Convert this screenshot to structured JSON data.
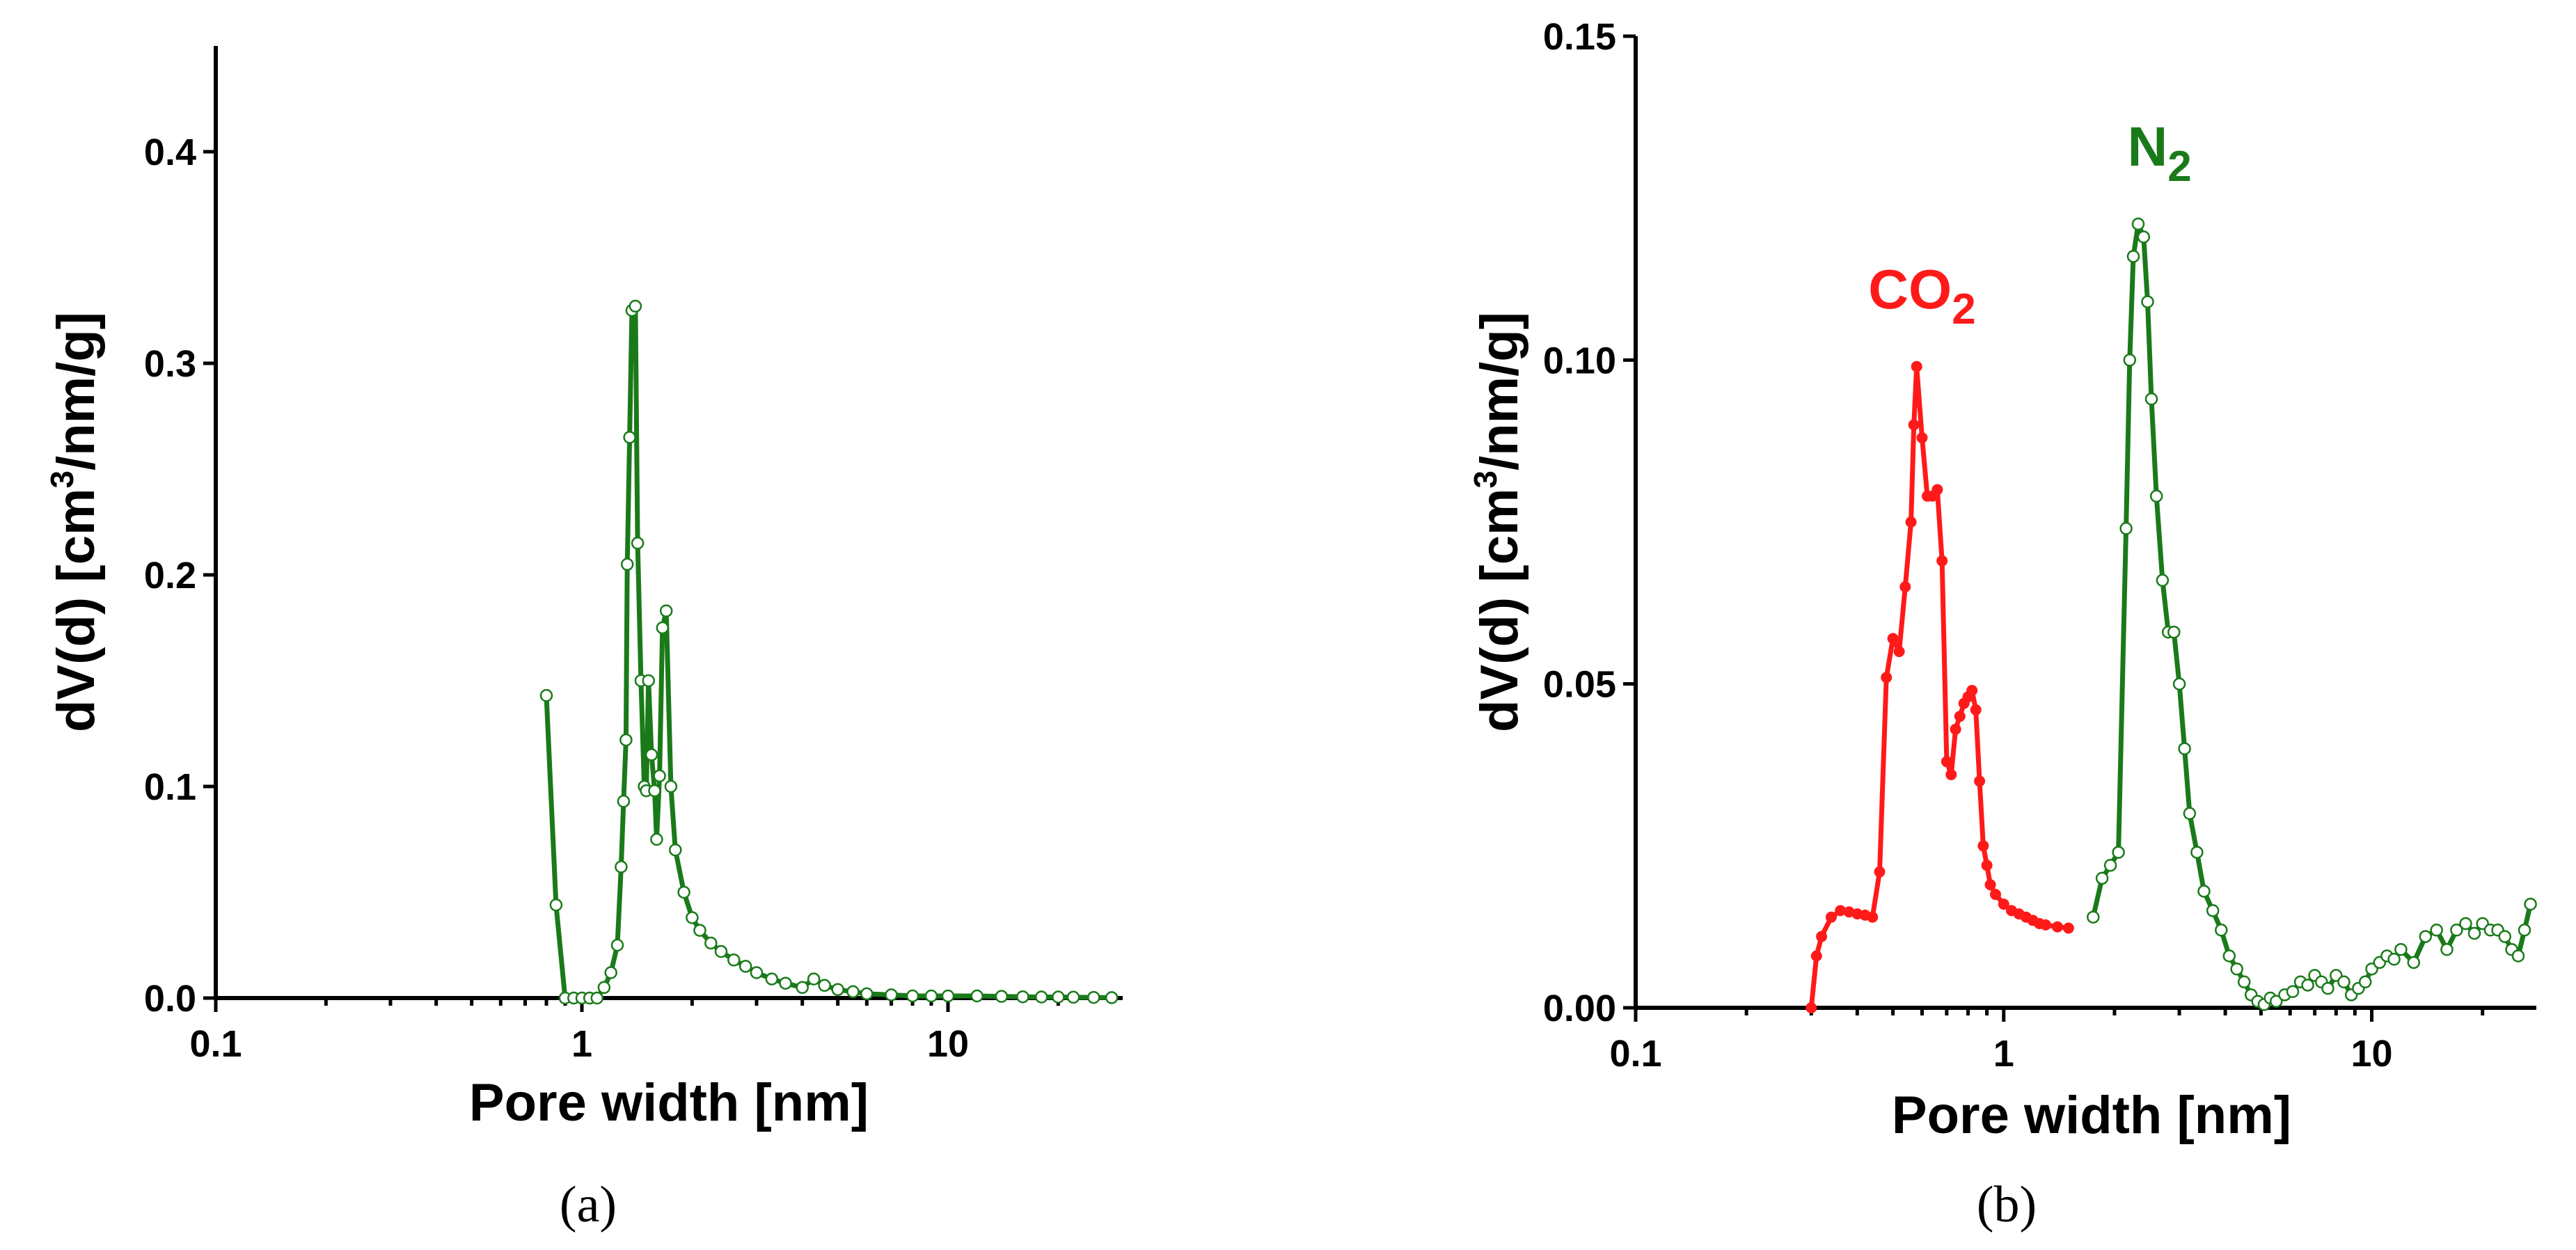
{
  "colors": {
    "nitrogen": "#1a7a1a",
    "co2": "#ff1a1a",
    "axis": "#000000"
  },
  "chart_data": [
    {
      "id": "a",
      "type": "line",
      "caption": "(a)",
      "xlabel": "Pore width [nm]",
      "ylabel_parts": [
        "dV(d) [cm",
        "3",
        "/nm/g]"
      ],
      "xscale": "log",
      "xlim": [
        0.1,
        30
      ],
      "ylim": [
        0,
        0.45
      ],
      "xticks": [
        {
          "v": 0.1,
          "label": "0.1"
        },
        {
          "v": 1,
          "label": "1"
        },
        {
          "v": 10,
          "label": "10"
        }
      ],
      "yticks": [
        {
          "v": 0,
          "label": "0.0"
        },
        {
          "v": 0.1,
          "label": "0.1"
        },
        {
          "v": 0.2,
          "label": "0.2"
        },
        {
          "v": 0.3,
          "label": "0.3"
        },
        {
          "v": 0.4,
          "label": "0.4"
        }
      ],
      "series": [
        {
          "name": "N2",
          "color": "#1a7a1a",
          "marker": "open-circle",
          "x": [
            0.8,
            0.85,
            0.9,
            0.95,
            1.0,
            1.05,
            1.1,
            1.15,
            1.2,
            1.25,
            1.28,
            1.3,
            1.32,
            1.33,
            1.35,
            1.37,
            1.4,
            1.42,
            1.45,
            1.48,
            1.5,
            1.52,
            1.55,
            1.58,
            1.6,
            1.63,
            1.66,
            1.7,
            1.75,
            1.8,
            1.9,
            2.0,
            2.1,
            2.25,
            2.4,
            2.6,
            2.8,
            3.0,
            3.3,
            3.6,
            4.0,
            4.3,
            4.6,
            5.0,
            5.5,
            6.0,
            7.0,
            8.0,
            9.0,
            10,
            12,
            14,
            16,
            18,
            20,
            22,
            25,
            28
          ],
          "y": [
            0.143,
            0.044,
            0.0,
            0.0,
            0.0,
            0.0,
            0.0,
            0.005,
            0.012,
            0.025,
            0.062,
            0.093,
            0.122,
            0.205,
            0.265,
            0.325,
            0.327,
            0.215,
            0.15,
            0.1,
            0.098,
            0.15,
            0.115,
            0.098,
            0.075,
            0.105,
            0.175,
            0.183,
            0.1,
            0.07,
            0.05,
            0.038,
            0.032,
            0.026,
            0.022,
            0.018,
            0.015,
            0.012,
            0.009,
            0.007,
            0.005,
            0.009,
            0.006,
            0.004,
            0.003,
            0.002,
            0.0015,
            0.001,
            0.001,
            0.001,
            0.001,
            0.0008,
            0.0006,
            0.0005,
            0.0005,
            0.0004,
            0.0003,
            0.0002
          ]
        }
      ]
    },
    {
      "id": "b",
      "type": "line",
      "caption": "(b)",
      "xlabel": "Pore width [nm]",
      "ylabel_parts": [
        "dV(d) [cm",
        "3",
        "/nm/g]"
      ],
      "xscale": "log",
      "xlim": [
        0.1,
        28
      ],
      "ylim": [
        0,
        0.15
      ],
      "xticks": [
        {
          "v": 0.1,
          "label": "0.1"
        },
        {
          "v": 1,
          "label": "1"
        },
        {
          "v": 10,
          "label": "10"
        }
      ],
      "yticks": [
        {
          "v": 0,
          "label": "0.00"
        },
        {
          "v": 0.05,
          "label": "0.05"
        },
        {
          "v": 0.1,
          "label": "0.10"
        },
        {
          "v": 0.15,
          "label": "0.15"
        }
      ],
      "annotations": [
        {
          "text": "CO",
          "sub": "2",
          "color": "#ff1a1a",
          "x": 0.6,
          "y": 0.108
        },
        {
          "text": "N",
          "sub": "2",
          "color": "#1a7a1a",
          "x": 2.65,
          "y": 0.13
        }
      ],
      "series": [
        {
          "name": "CO2",
          "color": "#ff1a1a",
          "marker": "filled-circle",
          "x": [
            0.3,
            0.31,
            0.32,
            0.34,
            0.36,
            0.38,
            0.4,
            0.42,
            0.44,
            0.46,
            0.48,
            0.5,
            0.52,
            0.54,
            0.56,
            0.57,
            0.58,
            0.6,
            0.62,
            0.64,
            0.66,
            0.68,
            0.7,
            0.72,
            0.74,
            0.76,
            0.78,
            0.8,
            0.82,
            0.84,
            0.86,
            0.88,
            0.9,
            0.92,
            0.95,
            1.0,
            1.05,
            1.1,
            1.15,
            1.2,
            1.25,
            1.3,
            1.4,
            1.5
          ],
          "y": [
            0.0,
            0.008,
            0.011,
            0.014,
            0.015,
            0.0148,
            0.0145,
            0.0143,
            0.014,
            0.021,
            0.051,
            0.057,
            0.055,
            0.065,
            0.075,
            0.09,
            0.099,
            0.088,
            0.079,
            0.079,
            0.08,
            0.069,
            0.038,
            0.036,
            0.043,
            0.045,
            0.047,
            0.048,
            0.049,
            0.046,
            0.035,
            0.025,
            0.022,
            0.019,
            0.0175,
            0.016,
            0.015,
            0.0145,
            0.014,
            0.0135,
            0.013,
            0.0128,
            0.0125,
            0.0123
          ]
        },
        {
          "name": "N2",
          "color": "#1a7a1a",
          "marker": "open-circle",
          "x": [
            1.75,
            1.85,
            1.95,
            2.05,
            2.15,
            2.2,
            2.25,
            2.32,
            2.4,
            2.46,
            2.52,
            2.6,
            2.7,
            2.8,
            2.9,
            3.0,
            3.1,
            3.2,
            3.35,
            3.5,
            3.7,
            3.9,
            4.1,
            4.3,
            4.5,
            4.7,
            4.9,
            5.1,
            5.3,
            5.5,
            5.8,
            6.1,
            6.4,
            6.7,
            7.0,
            7.3,
            7.6,
            8.0,
            8.4,
            8.8,
            9.2,
            9.6,
            10,
            10.5,
            11,
            11.5,
            12,
            13,
            14,
            15,
            16,
            17,
            18,
            19,
            20,
            21,
            22,
            23,
            24,
            25,
            26,
            27
          ],
          "y": [
            0.014,
            0.02,
            0.022,
            0.024,
            0.074,
            0.1,
            0.116,
            0.121,
            0.119,
            0.109,
            0.094,
            0.079,
            0.066,
            0.058,
            0.058,
            0.05,
            0.04,
            0.03,
            0.024,
            0.018,
            0.015,
            0.012,
            0.008,
            0.006,
            0.004,
            0.002,
            0.001,
            0.0005,
            0.0015,
            0.001,
            0.002,
            0.0025,
            0.004,
            0.0035,
            0.005,
            0.004,
            0.003,
            0.005,
            0.004,
            0.002,
            0.003,
            0.004,
            0.006,
            0.007,
            0.008,
            0.0075,
            0.009,
            0.007,
            0.011,
            0.012,
            0.009,
            0.012,
            0.013,
            0.0115,
            0.013,
            0.012,
            0.012,
            0.011,
            0.009,
            0.008,
            0.012,
            0.016
          ]
        }
      ]
    }
  ]
}
